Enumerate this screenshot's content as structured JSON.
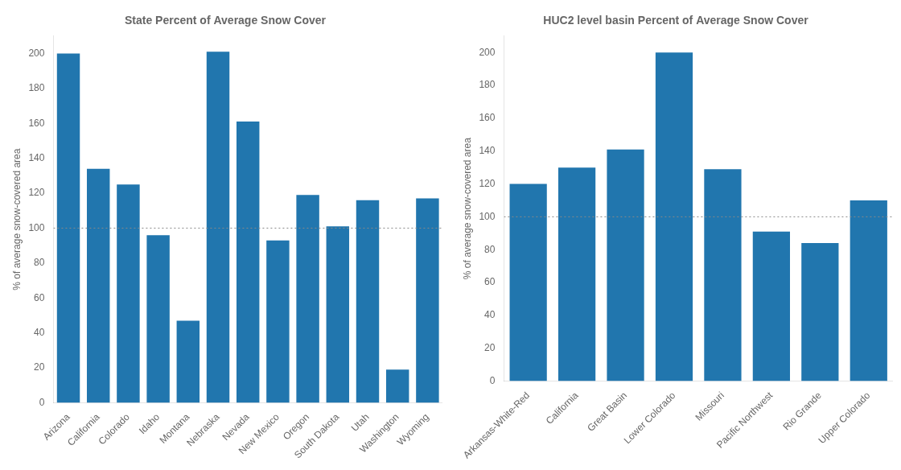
{
  "chart_data": [
    {
      "type": "bar",
      "title": "State Percent of Average Snow Cover",
      "ylabel": "% of average snow-covered area",
      "categories": [
        "Arizona",
        "California",
        "Colorado",
        "Idaho",
        "Montana",
        "Nebraska",
        "Nevada",
        "New Mexico",
        "Oregon",
        "South Dakota",
        "Utah",
        "Washington",
        "Wyoming"
      ],
      "values": [
        200,
        134,
        125,
        96,
        47,
        201,
        161,
        93,
        119,
        101,
        116,
        19,
        117
      ],
      "color": "#2176AE",
      "ylim": [
        0,
        210
      ],
      "yticks": [
        0,
        20,
        40,
        60,
        80,
        100,
        120,
        140,
        160,
        180,
        200
      ],
      "hline": 100,
      "grid": false
    },
    {
      "type": "bar",
      "title": "HUC2 level basin Percent of Average Snow Cover",
      "ylabel": "% of average snow-covered area",
      "categories": [
        "Arkansas-White-Red",
        "California",
        "Great Basin",
        "Lower Colorado",
        "Missouri",
        "Pacific Northwest",
        "Rio Grande",
        "Upper Colorado"
      ],
      "values": [
        120,
        130,
        141,
        200,
        129,
        91,
        84,
        110
      ],
      "color": "#2176AE",
      "ylim": [
        0,
        210
      ],
      "yticks": [
        0,
        20,
        40,
        60,
        80,
        100,
        120,
        140,
        160,
        180,
        200
      ],
      "hline": 100,
      "grid": false
    }
  ]
}
